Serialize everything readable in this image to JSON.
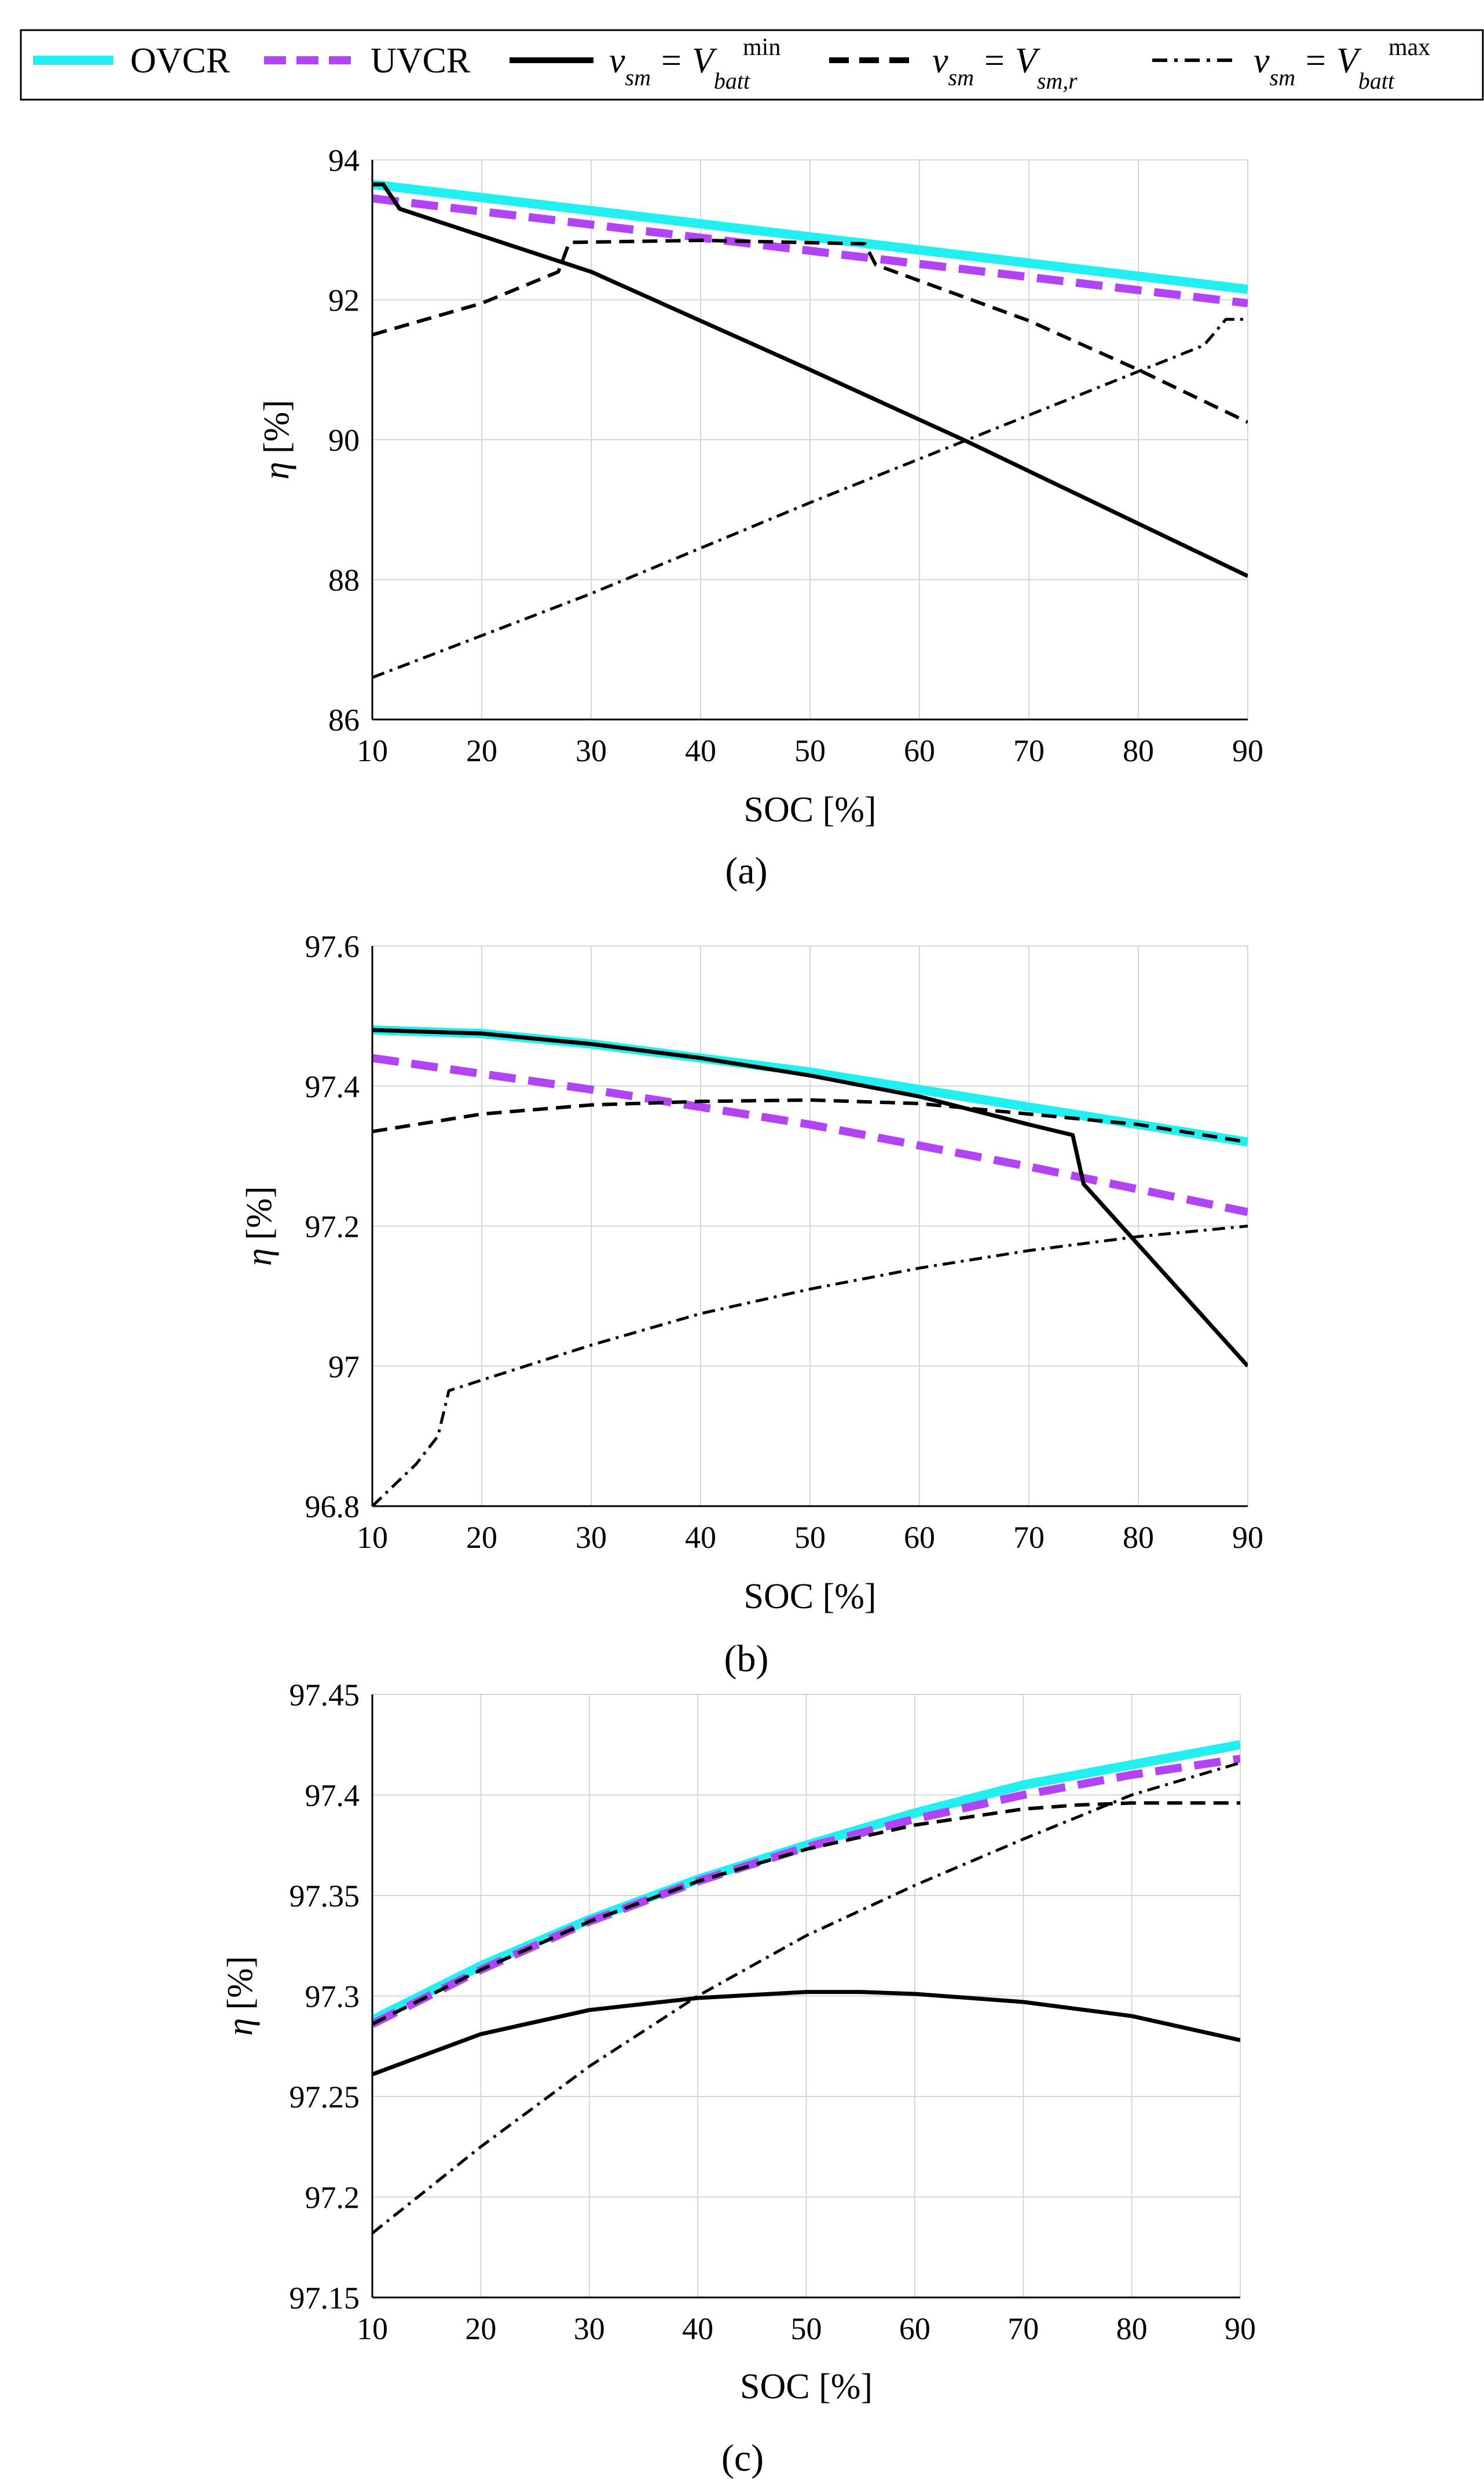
{
  "legend": {
    "items": [
      {
        "label": "OVCR",
        "color": "#22f0f0",
        "style": "solid-thick"
      },
      {
        "label": "UVCR",
        "color": "#b344f5",
        "style": "dashed-thick"
      },
      {
        "label_v": "v",
        "label_sub": "sm",
        "label_eq": "=",
        "label_V": "V",
        "label_sub2": "batt",
        "label_sup": "min",
        "color": "#000000",
        "style": "solid"
      },
      {
        "label_v": "v",
        "label_sub": "sm",
        "label_eq": "=",
        "label_V": "V",
        "label_sub2": "sm,r",
        "color": "#000000",
        "style": "dashed"
      },
      {
        "label_v": "v",
        "label_sub": "sm",
        "label_eq": "=",
        "label_V": "V",
        "label_sub2": "batt",
        "label_sup": "max",
        "color": "#000000",
        "style": "dashdot"
      }
    ]
  },
  "chart_data": [
    {
      "type": "line",
      "panel_label": "(a)",
      "xlabel": "SOC [%]",
      "ylabel_symbol": "η",
      "ylabel_unit": "[%]",
      "xlim": [
        10,
        90
      ],
      "ylim": [
        86,
        94
      ],
      "xticks": [
        10,
        20,
        30,
        40,
        50,
        60,
        70,
        80,
        90
      ],
      "yticks": [
        86,
        88,
        90,
        92,
        94
      ],
      "ytick_labels": [
        "86",
        "88",
        "90",
        "92",
        "94"
      ],
      "grid": true,
      "series": [
        {
          "name": "OVCR",
          "style": "ovcr",
          "x": [
            10,
            90
          ],
          "y": [
            93.65,
            92.15
          ]
        },
        {
          "name": "UVCR",
          "style": "uvcr",
          "x": [
            10,
            90
          ],
          "y": [
            93.45,
            91.95
          ]
        },
        {
          "name": "v_sm = V_batt^min",
          "style": "solid",
          "x": [
            10,
            11,
            12.5,
            30,
            50,
            64,
            90
          ],
          "y": [
            93.65,
            93.65,
            93.3,
            92.4,
            91.0,
            90.0,
            88.05
          ]
        },
        {
          "name": "v_sm = V_sm,r",
          "style": "dashed",
          "x": [
            10,
            20,
            27,
            28,
            40,
            55,
            56,
            70,
            80,
            90
          ],
          "y": [
            91.5,
            91.95,
            92.4,
            92.82,
            92.85,
            92.8,
            92.5,
            91.7,
            91.0,
            90.25
          ]
        },
        {
          "name": "v_sm = V_batt^max",
          "style": "dashdot",
          "x": [
            10,
            30,
            50,
            70,
            86,
            88,
            90
          ],
          "y": [
            86.6,
            87.8,
            89.1,
            90.35,
            91.35,
            91.72,
            91.72
          ]
        }
      ]
    },
    {
      "type": "line",
      "panel_label": "(b)",
      "xlabel": "SOC [%]",
      "ylabel_symbol": "η",
      "ylabel_unit": "[%]",
      "xlim": [
        10,
        90
      ],
      "ylim": [
        96.8,
        97.6
      ],
      "xticks": [
        10,
        20,
        30,
        40,
        50,
        60,
        70,
        80,
        90
      ],
      "yticks": [
        96.8,
        97.0,
        97.2,
        97.4,
        97.6
      ],
      "ytick_labels": [
        "96.8",
        "97",
        "97.2",
        "97.4",
        "97.6"
      ],
      "grid": true,
      "series": [
        {
          "name": "OVCR",
          "style": "ovcr",
          "x": [
            10,
            20,
            30,
            40,
            50,
            60,
            70,
            80,
            90
          ],
          "y": [
            97.48,
            97.475,
            97.46,
            97.44,
            97.42,
            97.395,
            97.37,
            97.345,
            97.32
          ]
        },
        {
          "name": "UVCR",
          "style": "uvcr",
          "x": [
            10,
            30,
            50,
            70,
            90
          ],
          "y": [
            97.44,
            97.395,
            97.345,
            97.285,
            97.22
          ]
        },
        {
          "name": "v_sm = V_batt^min",
          "style": "solid",
          "x": [
            10,
            20,
            30,
            40,
            50,
            60,
            70,
            74,
            75,
            90
          ],
          "y": [
            97.48,
            97.475,
            97.46,
            97.44,
            97.415,
            97.385,
            97.345,
            97.33,
            97.26,
            97.0
          ]
        },
        {
          "name": "v_sm = V_sm,r",
          "style": "dashed",
          "x": [
            10,
            20,
            30,
            40,
            50,
            60,
            70,
            80,
            90
          ],
          "y": [
            97.335,
            97.36,
            97.373,
            97.378,
            97.38,
            97.375,
            97.36,
            97.345,
            97.32
          ]
        },
        {
          "name": "v_sm = V_batt^max",
          "style": "dashdot",
          "x": [
            10,
            14,
            16,
            17,
            20,
            30,
            40,
            50,
            60,
            70,
            80,
            90
          ],
          "y": [
            96.8,
            96.86,
            96.9,
            96.965,
            96.98,
            97.03,
            97.075,
            97.11,
            97.14,
            97.165,
            97.185,
            97.2
          ]
        }
      ]
    },
    {
      "type": "line",
      "panel_label": "(c)",
      "xlabel": "SOC [%]",
      "ylabel_symbol": "η",
      "ylabel_unit": "[%]",
      "xlim": [
        10,
        90
      ],
      "ylim": [
        97.15,
        97.45
      ],
      "xticks": [
        10,
        20,
        30,
        40,
        50,
        60,
        70,
        80,
        90
      ],
      "yticks": [
        97.15,
        97.2,
        97.25,
        97.3,
        97.35,
        97.4,
        97.45
      ],
      "ytick_labels": [
        "97.15",
        "97.2",
        "97.25",
        "97.3",
        "97.35",
        "97.4",
        "97.45"
      ],
      "grid": true,
      "series": [
        {
          "name": "OVCR",
          "style": "ovcr",
          "x": [
            10,
            20,
            30,
            40,
            50,
            60,
            70,
            80,
            90
          ],
          "y": [
            97.288,
            97.315,
            97.338,
            97.358,
            97.375,
            97.391,
            97.405,
            97.415,
            97.425
          ]
        },
        {
          "name": "UVCR",
          "style": "uvcr",
          "x": [
            10,
            20,
            30,
            40,
            50,
            60,
            70,
            80,
            90
          ],
          "y": [
            97.286,
            97.313,
            97.337,
            97.357,
            97.374,
            97.388,
            97.4,
            97.41,
            97.418
          ]
        },
        {
          "name": "v_sm = V_batt^min",
          "style": "solid",
          "x": [
            10,
            20,
            30,
            40,
            50,
            55,
            60,
            70,
            80,
            90
          ],
          "y": [
            97.261,
            97.281,
            97.293,
            97.299,
            97.302,
            97.302,
            97.301,
            97.297,
            97.29,
            97.278
          ]
        },
        {
          "name": "v_sm = V_sm,r",
          "style": "dashed",
          "x": [
            10,
            20,
            30,
            40,
            50,
            60,
            70,
            75,
            80,
            90
          ],
          "y": [
            97.286,
            97.313,
            97.337,
            97.357,
            97.373,
            97.385,
            97.393,
            97.395,
            97.396,
            97.396
          ]
        },
        {
          "name": "v_sm = V_batt^max",
          "style": "dashdot",
          "x": [
            10,
            20,
            30,
            40,
            50,
            60,
            70,
            80,
            90
          ],
          "y": [
            97.182,
            97.225,
            97.265,
            97.3,
            97.33,
            97.355,
            97.378,
            97.4,
            97.416
          ]
        }
      ]
    }
  ]
}
